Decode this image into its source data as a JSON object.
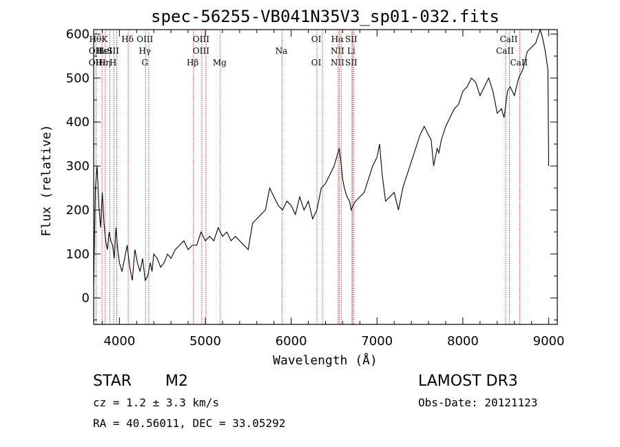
{
  "chart_data": {
    "type": "line",
    "title": "spec-56255-VB041N35V3_sp01-032.fits",
    "xlabel": "Wavelength (Å)",
    "ylabel": "Flux (relative)",
    "xlim": [
      3700,
      9100
    ],
    "ylim": [
      -60,
      610
    ],
    "x_ticks": [
      4000,
      5000,
      6000,
      7000,
      8000,
      9000
    ],
    "x_tick_labels": [
      "4000",
      "5000",
      "6000",
      "7000",
      "8000",
      "9000"
    ],
    "y_ticks": [
      0,
      100,
      200,
      300,
      400,
      500,
      600
    ],
    "y_tick_labels": [
      "0",
      "100",
      "200",
      "300",
      "400",
      "500",
      "600"
    ],
    "grid": false,
    "line_color": "#000000",
    "marker_color": "#cc2222",
    "series": [
      {
        "x": [
          3700,
          3720,
          3740,
          3760,
          3780,
          3800,
          3820,
          3840,
          3860,
          3880,
          3900,
          3920,
          3940,
          3960,
          3980,
          4000,
          4030,
          4060,
          4090,
          4120,
          4150,
          4180,
          4210,
          4240,
          4270,
          4300,
          4330,
          4360,
          4380,
          4400,
          4440,
          4480,
          4520,
          4560,
          4600,
          4650,
          4700,
          4750,
          4800,
          4850,
          4900,
          4950,
          5000,
          5050,
          5100,
          5150,
          5200,
          5250,
          5300,
          5350,
          5400,
          5450,
          5500,
          5550,
          5600,
          5650,
          5700,
          5750,
          5800,
          5850,
          5900,
          5950,
          6000,
          6050,
          6100,
          6150,
          6200,
          6250,
          6300,
          6350,
          6400,
          6450,
          6500,
          6530,
          6560,
          6580,
          6600,
          6620,
          6650,
          6680,
          6700,
          6720,
          6750,
          6800,
          6850,
          6900,
          6950,
          7000,
          7030,
          7060,
          7100,
          7150,
          7200,
          7250,
          7300,
          7350,
          7400,
          7450,
          7500,
          7550,
          7600,
          7630,
          7660,
          7680,
          7700,
          7720,
          7750,
          7800,
          7850,
          7900,
          7950,
          8000,
          8050,
          8100,
          8150,
          8200,
          8250,
          8300,
          8350,
          8400,
          8450,
          8480,
          8500,
          8520,
          8550,
          8600,
          8650,
          8700,
          8750,
          8800,
          8850,
          8900,
          8930,
          8960,
          8990,
          9000
        ],
        "y": [
          30,
          250,
          300,
          210,
          160,
          240,
          170,
          130,
          110,
          150,
          130,
          120,
          90,
          160,
          110,
          80,
          60,
          90,
          120,
          70,
          40,
          110,
          80,
          60,
          90,
          40,
          50,
          80,
          60,
          100,
          90,
          70,
          80,
          100,
          90,
          110,
          120,
          130,
          110,
          120,
          120,
          150,
          130,
          140,
          130,
          160,
          140,
          150,
          130,
          140,
          130,
          120,
          110,
          170,
          180,
          190,
          200,
          250,
          230,
          210,
          200,
          220,
          210,
          190,
          230,
          200,
          220,
          180,
          200,
          250,
          260,
          280,
          300,
          320,
          340,
          310,
          270,
          250,
          230,
          220,
          200,
          210,
          220,
          230,
          240,
          270,
          300,
          320,
          350,
          280,
          220,
          230,
          240,
          200,
          250,
          280,
          310,
          340,
          370,
          390,
          370,
          360,
          300,
          320,
          340,
          330,
          360,
          390,
          410,
          430,
          440,
          470,
          480,
          500,
          490,
          460,
          480,
          500,
          470,
          420,
          430,
          410,
          440,
          470,
          480,
          460,
          500,
          520,
          560,
          570,
          580,
          610,
          590,
          560,
          520,
          300
        ]
      }
    ],
    "spectral_lines": [
      {
        "labels": [
          "Hθ",
          "OII",
          "OII"
        ],
        "wavelength": 3727
      },
      {
        "labels": [
          "",
          "Hε",
          "Hε"
        ],
        "wavelength": 3797
      },
      {
        "labels": [
          "K",
          "HeI",
          "Hη"
        ],
        "wavelength": 3835
      },
      {
        "labels": [
          "",
          "",
          ""
        ],
        "wavelength": 3889
      },
      {
        "labels": [
          "",
          "SII",
          "H"
        ],
        "wavelength": 3934
      },
      {
        "labels": [
          "",
          "",
          ""
        ],
        "wavelength": 3969
      },
      {
        "labels": [
          "Hδ",
          "",
          ""
        ],
        "wavelength": 4102
      },
      {
        "labels": [
          "OIII",
          "Hγ",
          "G"
        ],
        "wavelength": 4304
      },
      {
        "labels": [
          "",
          "",
          ""
        ],
        "wavelength": 4341
      },
      {
        "labels": [
          "",
          "",
          "Hβ"
        ],
        "wavelength": 4861
      },
      {
        "labels": [
          "OIII",
          "OIII",
          ""
        ],
        "wavelength": 4959
      },
      {
        "labels": [
          "",
          "",
          ""
        ],
        "wavelength": 5007
      },
      {
        "labels": [
          "",
          "",
          "Mg"
        ],
        "wavelength": 5175
      },
      {
        "labels": [
          "",
          "Na",
          ""
        ],
        "wavelength": 5894
      },
      {
        "labels": [
          "OI",
          "",
          "OI"
        ],
        "wavelength": 6300
      },
      {
        "labels": [
          "",
          "",
          ""
        ],
        "wavelength": 6364
      },
      {
        "labels": [
          "Hα",
          "NII",
          "NII"
        ],
        "wavelength": 6548
      },
      {
        "labels": [
          "",
          "",
          ""
        ],
        "wavelength": 6563
      },
      {
        "labels": [
          "",
          "",
          ""
        ],
        "wavelength": 6583
      },
      {
        "labels": [
          "SII",
          "Li",
          "SII"
        ],
        "wavelength": 6708
      },
      {
        "labels": [
          "",
          "",
          ""
        ],
        "wavelength": 6716
      },
      {
        "labels": [
          "",
          "",
          ""
        ],
        "wavelength": 6731
      },
      {
        "labels": [
          "",
          "CaII",
          ""
        ],
        "wavelength": 8498
      },
      {
        "labels": [
          "CaII",
          "",
          ""
        ],
        "wavelength": 8542
      },
      {
        "labels": [
          "",
          "",
          "CaII"
        ],
        "wavelength": 8662
      }
    ]
  },
  "info": {
    "object_class": "STAR",
    "subclass": "M2",
    "survey": "LAMOST DR3",
    "redshift": "cz = 1.2 ± 3.3 km/s",
    "obs_date": "Obs-Date: 20121123",
    "coords": "RA =  40.56011, DEC =  33.05292"
  }
}
